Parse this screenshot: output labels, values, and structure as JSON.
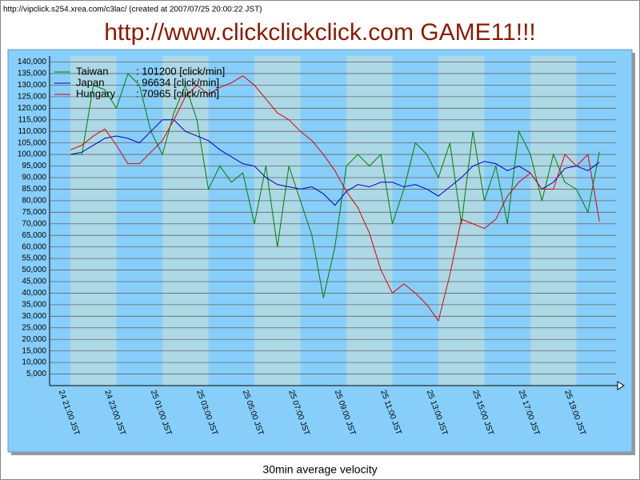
{
  "header": "http://vipclick.s254.xrea.com/c3lac/ (created at 2007/07/25 20:00:22 JST)",
  "chart_data": {
    "type": "line",
    "title": "http://www.clickclickclick.com  GAME11!!!",
    "x_label": "30min average velocity",
    "categories": [
      "24 21:00 JST",
      null,
      null,
      null,
      "24 23:00 JST",
      null,
      null,
      null,
      "25 01:00 JST",
      null,
      null,
      null,
      "25 03:00 JST",
      null,
      null,
      null,
      "25 05:00 JST",
      null,
      null,
      null,
      "25 07:00 JST",
      null,
      null,
      null,
      "25 09:00 JST",
      null,
      null,
      null,
      "25 11:00 JST",
      null,
      null,
      null,
      "25 13:00 JST",
      null,
      null,
      null,
      "25 15:00 JST",
      null,
      null,
      null,
      "25 17:00 JST",
      null,
      null,
      null,
      "25 19:00 JST",
      null,
      null
    ],
    "series": [
      {
        "name": "Taiwan",
        "legend_label": ": 101200 [click/min]",
        "color": "#008000",
        "values": [
          100000,
          100000,
          130000,
          128000,
          120000,
          135000,
          130000,
          110000,
          100000,
          118000,
          130000,
          115000,
          85000,
          95000,
          88000,
          92000,
          70000,
          95000,
          60000,
          95000,
          80000,
          65000,
          38000,
          60000,
          95000,
          100000,
          95000,
          100000,
          70000,
          85000,
          105000,
          100000,
          90000,
          105000,
          70000,
          110000,
          80000,
          95000,
          70000,
          110000,
          100000,
          80000,
          100000,
          88000,
          85000,
          75000,
          101200
        ]
      },
      {
        "name": "Japan",
        "legend_label": ": 96634 [click/min]",
        "color": "#0000cc",
        "values": [
          100000,
          101000,
          104000,
          107000,
          108000,
          107000,
          105000,
          110000,
          115000,
          115000,
          110000,
          108000,
          106000,
          102000,
          99000,
          96000,
          95000,
          90000,
          87000,
          86000,
          85000,
          86000,
          83000,
          78000,
          84000,
          87000,
          86000,
          88000,
          88000,
          86000,
          87000,
          85000,
          82000,
          86000,
          90000,
          95000,
          97000,
          96000,
          93000,
          95000,
          92000,
          85000,
          88000,
          94000,
          95000,
          93000,
          96634
        ]
      },
      {
        "name": "Hungary",
        "legend_label": ": 70965 [click/min]",
        "color": "#e00000",
        "values": [
          102000,
          104000,
          108000,
          111000,
          104000,
          96000,
          96000,
          101000,
          106000,
          115000,
          125000,
          130000,
          126000,
          129000,
          131000,
          134000,
          130000,
          124000,
          118000,
          115000,
          110000,
          106000,
          100000,
          93000,
          84000,
          77000,
          66000,
          50000,
          40000,
          44000,
          40000,
          35000,
          28000,
          48000,
          72000,
          70000,
          68000,
          72000,
          82000,
          88000,
          92000,
          85000,
          85000,
          100000,
          95000,
          100000,
          70965
        ]
      }
    ],
    "ylim": [
      0,
      142600
    ],
    "yticks": [
      {
        "value": 5000,
        "label": "5,000"
      },
      {
        "value": 10000,
        "label": "10,000"
      },
      {
        "value": 15000,
        "label": "15,000"
      },
      {
        "value": 20000,
        "label": "20,000"
      },
      {
        "value": 25000,
        "label": "25,000"
      },
      {
        "value": 30000,
        "label": "30,000"
      },
      {
        "value": 35000,
        "label": "35,000"
      },
      {
        "value": 40000,
        "label": "40,000"
      },
      {
        "value": 45000,
        "label": "45,000"
      },
      {
        "value": 50000,
        "label": "50,000"
      },
      {
        "value": 55000,
        "label": "55,000"
      },
      {
        "value": 60000,
        "label": "60,000"
      },
      {
        "value": 65000,
        "label": "65,000"
      },
      {
        "value": 70000,
        "label": "70,000"
      },
      {
        "value": 75000,
        "label": "75,000"
      },
      {
        "value": 80000,
        "label": "80,000"
      },
      {
        "value": 85000,
        "label": "85,000"
      },
      {
        "value": 90000,
        "label": "90,000"
      },
      {
        "value": 95000,
        "label": "95,000"
      },
      {
        "value": 100000,
        "label": "100,000"
      },
      {
        "value": 105000,
        "label": "105,000"
      },
      {
        "value": 110000,
        "label": "110,000"
      },
      {
        "value": 115000,
        "label": "115,000"
      },
      {
        "value": 120000,
        "label": "120,000"
      },
      {
        "value": 125000,
        "label": "125,000"
      },
      {
        "value": 130000,
        "label": "130,000"
      },
      {
        "value": 135000,
        "label": "135,000"
      },
      {
        "value": 140000,
        "label": "140,000"
      }
    ],
    "grid": true
  }
}
